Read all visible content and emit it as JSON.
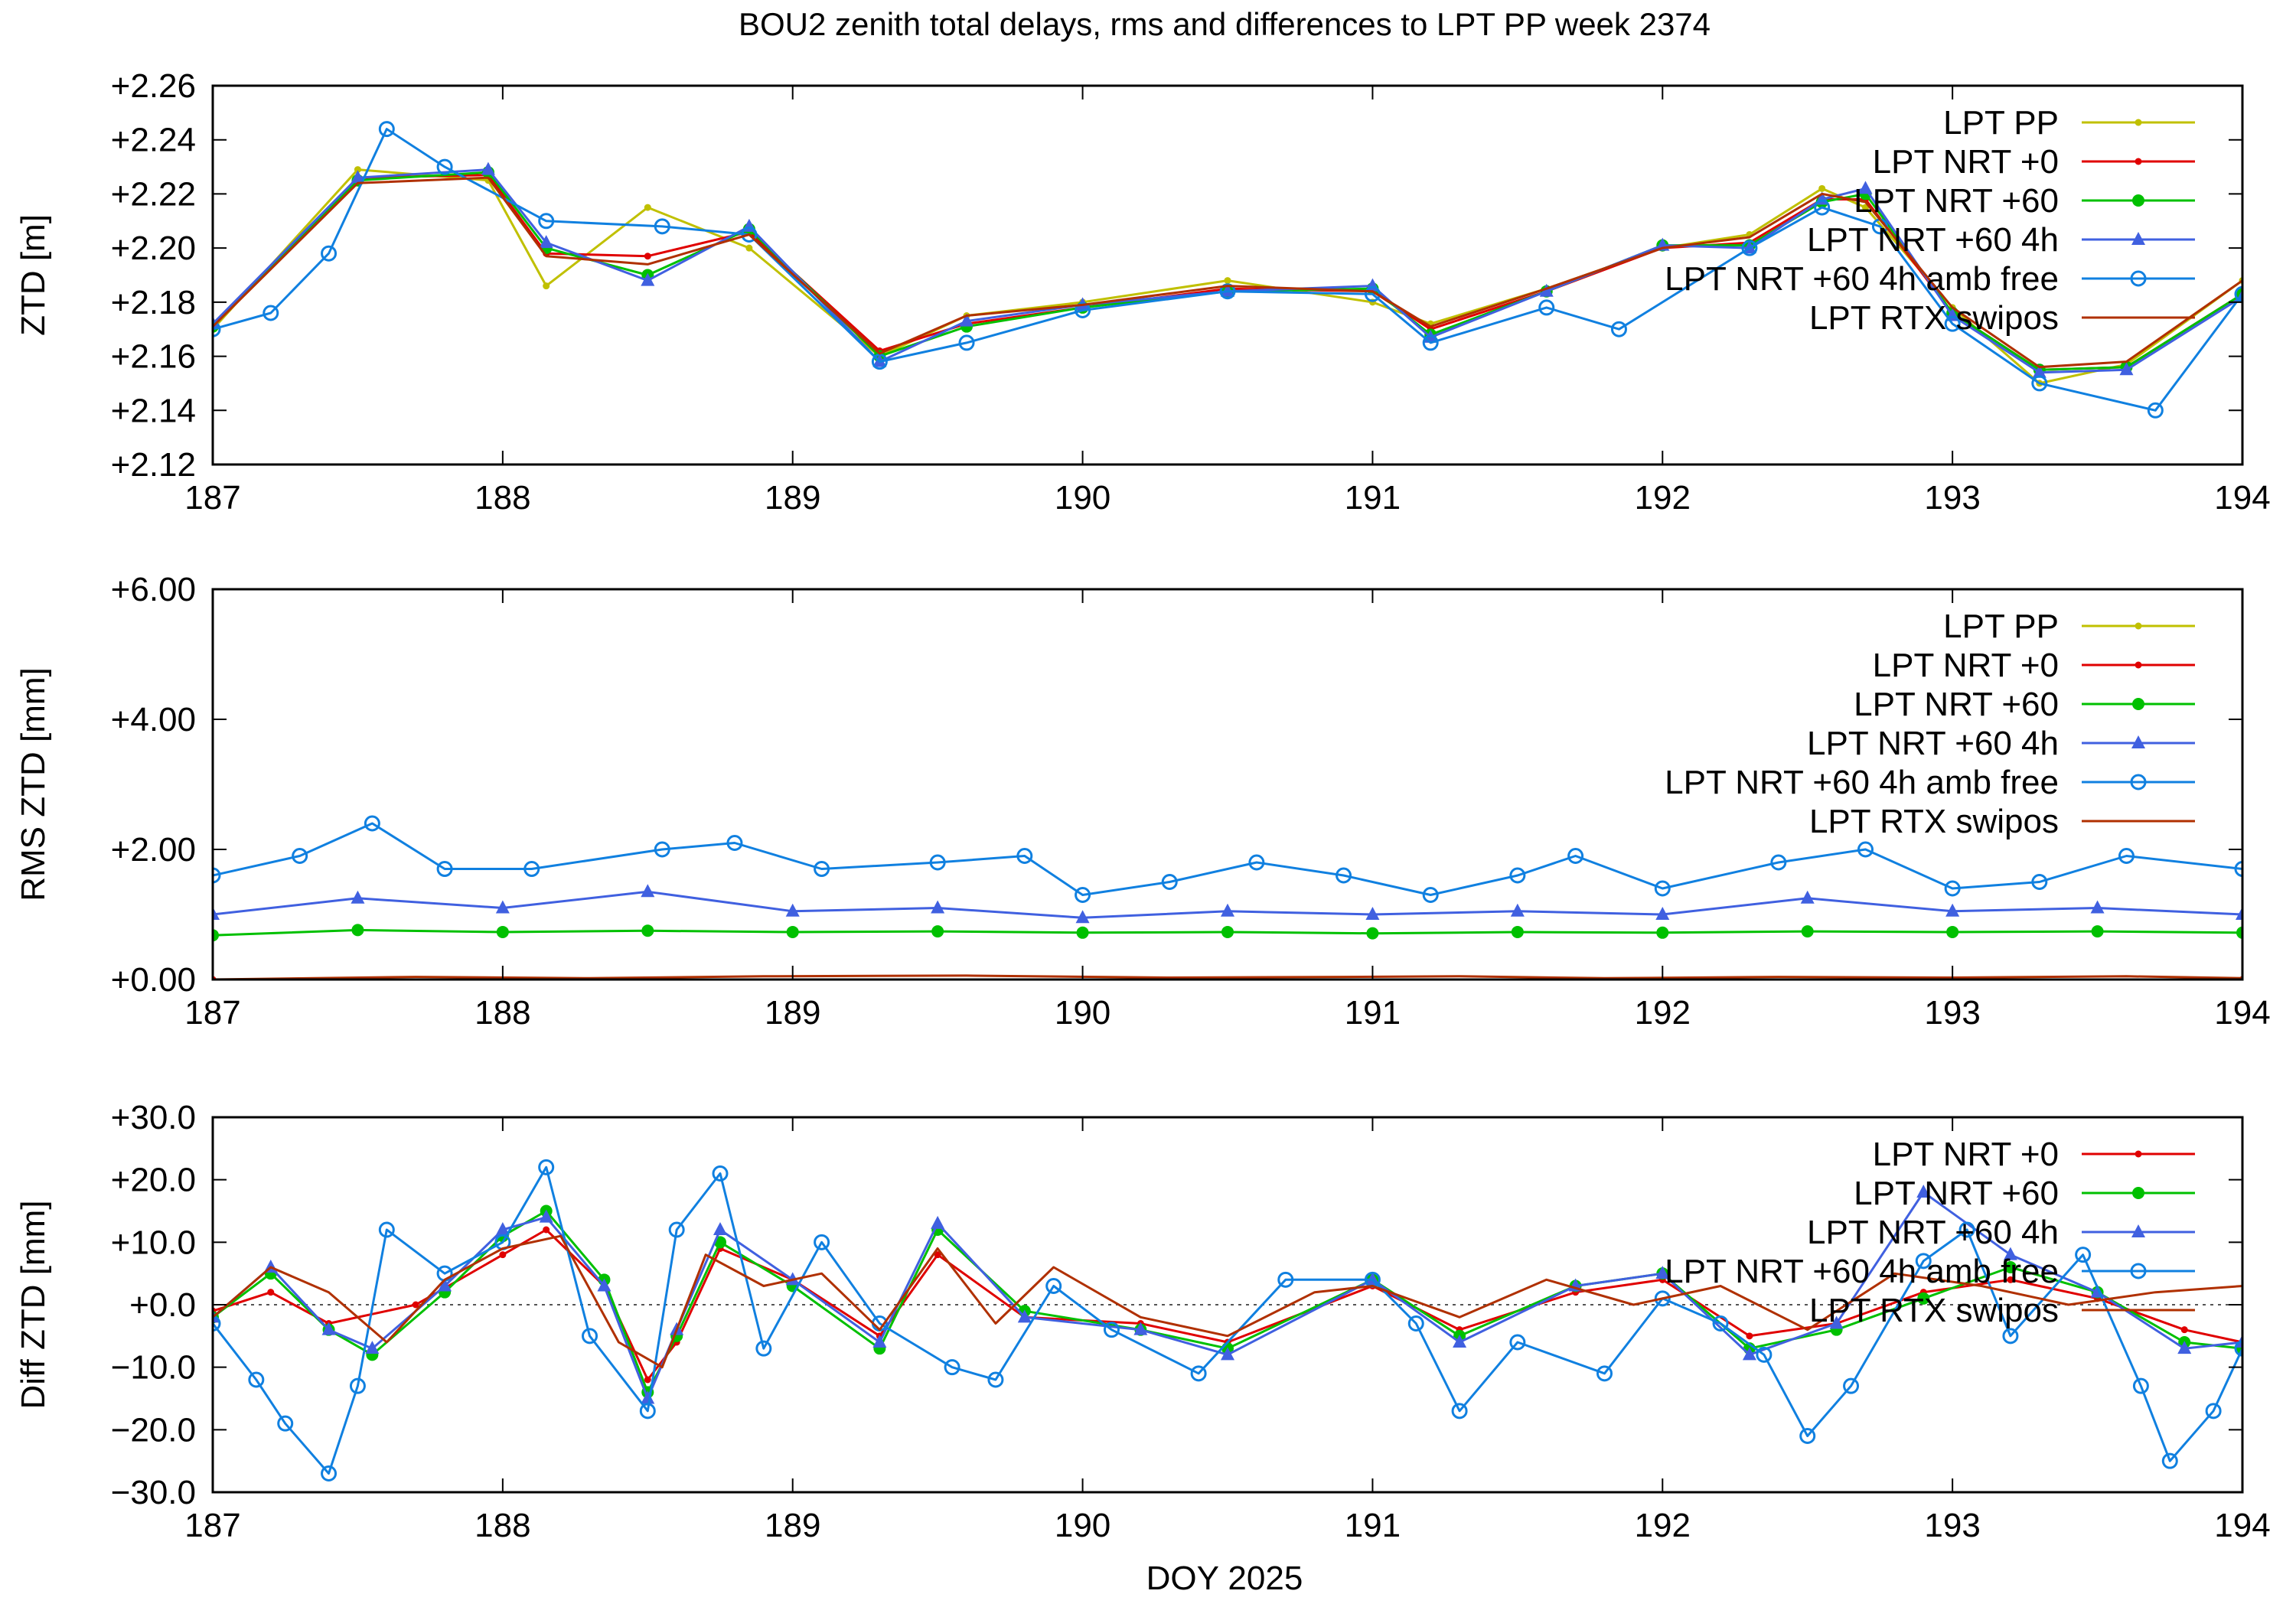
{
  "figure": {
    "title": "BOU2 zenith total delays, rms and differences to LPT PP week 2374",
    "xlabel": "DOY 2025"
  },
  "chart_data": [
    {
      "type": "line",
      "ylabel": "ZTD [m]",
      "xlim": [
        187,
        194
      ],
      "ylim": [
        2.12,
        2.26
      ],
      "x_ticks": [
        187,
        188,
        189,
        190,
        191,
        192,
        193,
        194
      ],
      "x_tick_labels": [
        "187",
        "188",
        "189",
        "190",
        "191",
        "192",
        "193",
        "194"
      ],
      "y_ticks": [
        2.12,
        2.14,
        2.16,
        2.18,
        2.2,
        2.22,
        2.24,
        2.26
      ],
      "y_tick_labels": [
        "+2.12",
        "+2.14",
        "+2.16",
        "+2.18",
        "+2.20",
        "+2.22",
        "+2.24",
        "+2.26"
      ],
      "legend_position": "top-right",
      "zero_line": false,
      "series": [
        {
          "name": "LPT PP",
          "color": "#c0c000",
          "marker": "small-dot",
          "x": [
            187.0,
            187.5,
            187.95,
            188.15,
            188.5,
            188.85,
            189.3,
            189.6,
            190.0,
            190.5,
            191.0,
            191.2,
            191.6,
            192.0,
            192.3,
            192.55,
            192.7,
            193.0,
            193.3,
            193.6,
            194.0
          ],
          "y": [
            2.17,
            2.229,
            2.225,
            2.186,
            2.215,
            2.2,
            2.16,
            2.175,
            2.18,
            2.188,
            2.18,
            2.172,
            2.185,
            2.2,
            2.205,
            2.222,
            2.215,
            2.178,
            2.15,
            2.157,
            2.188
          ]
        },
        {
          "name": "LPT NRT +0",
          "color": "#e00000",
          "marker": "small-dot",
          "x": [
            187.0,
            187.5,
            187.95,
            188.15,
            188.5,
            188.85,
            189.3,
            189.6,
            190.0,
            190.5,
            191.0,
            191.2,
            191.6,
            192.0,
            192.3,
            192.55,
            192.7,
            193.0,
            193.3,
            193.6,
            194.0
          ],
          "y": [
            2.171,
            2.226,
            2.227,
            2.198,
            2.197,
            2.206,
            2.162,
            2.172,
            2.178,
            2.185,
            2.184,
            2.17,
            2.184,
            2.2,
            2.202,
            2.218,
            2.218,
            2.176,
            2.155,
            2.156,
            2.183
          ]
        },
        {
          "name": "LPT NRT +60",
          "color": "#00c000",
          "marker": "filled-circle",
          "x": [
            187.0,
            187.5,
            187.95,
            188.15,
            188.5,
            188.85,
            189.3,
            189.6,
            190.0,
            190.5,
            191.0,
            191.2,
            191.6,
            192.0,
            192.3,
            192.55,
            192.7,
            193.0,
            193.3,
            193.6,
            194.0
          ],
          "y": [
            2.171,
            2.225,
            2.228,
            2.2,
            2.19,
            2.207,
            2.16,
            2.171,
            2.178,
            2.184,
            2.185,
            2.168,
            2.184,
            2.201,
            2.201,
            2.217,
            2.22,
            2.176,
            2.155,
            2.156,
            2.183
          ]
        },
        {
          "name": "LPT NRT +60 4h",
          "color": "#4060e0",
          "marker": "triangle",
          "x": [
            187.0,
            187.5,
            187.95,
            188.15,
            188.5,
            188.85,
            189.3,
            189.6,
            190.0,
            190.5,
            191.0,
            191.2,
            191.6,
            192.0,
            192.3,
            192.55,
            192.7,
            193.0,
            193.3,
            193.6,
            194.0
          ],
          "y": [
            2.172,
            2.226,
            2.229,
            2.202,
            2.188,
            2.208,
            2.158,
            2.173,
            2.179,
            2.184,
            2.186,
            2.167,
            2.184,
            2.201,
            2.2,
            2.218,
            2.222,
            2.175,
            2.154,
            2.155,
            2.182
          ]
        },
        {
          "name": "LPT NRT +60 4h amb free",
          "color": "#1080e0",
          "marker": "open-circle",
          "x": [
            187.0,
            187.2,
            187.4,
            187.6,
            187.8,
            188.15,
            188.55,
            188.85,
            189.3,
            189.6,
            190.0,
            190.5,
            191.0,
            191.2,
            191.6,
            191.85,
            192.3,
            192.55,
            192.75,
            193.0,
            193.3,
            193.7,
            194.0
          ],
          "y": [
            2.17,
            2.176,
            2.198,
            2.244,
            2.23,
            2.21,
            2.208,
            2.205,
            2.158,
            2.165,
            2.177,
            2.184,
            2.183,
            2.165,
            2.178,
            2.17,
            2.2,
            2.215,
            2.208,
            2.172,
            2.15,
            2.14,
            2.183
          ]
        },
        {
          "name": "LPT RTX swipos",
          "color": "#b03000",
          "marker": "none",
          "x": [
            187.0,
            187.5,
            187.95,
            188.15,
            188.5,
            188.85,
            189.3,
            189.6,
            190.0,
            190.5,
            191.0,
            191.2,
            191.6,
            192.0,
            192.3,
            192.55,
            192.7,
            193.0,
            193.3,
            193.6,
            194.0
          ],
          "y": [
            2.171,
            2.224,
            2.226,
            2.197,
            2.194,
            2.205,
            2.161,
            2.175,
            2.179,
            2.186,
            2.184,
            2.171,
            2.185,
            2.2,
            2.204,
            2.22,
            2.217,
            2.178,
            2.156,
            2.158,
            2.188
          ]
        }
      ]
    },
    {
      "type": "line",
      "ylabel": "RMS ZTD [mm]",
      "xlim": [
        187,
        194
      ],
      "ylim": [
        0,
        6
      ],
      "x_ticks": [
        187,
        188,
        189,
        190,
        191,
        192,
        193,
        194
      ],
      "x_tick_labels": [
        "187",
        "188",
        "189",
        "190",
        "191",
        "192",
        "193",
        "194"
      ],
      "y_ticks": [
        0,
        2,
        4,
        6
      ],
      "y_tick_labels": [
        "+0.00",
        "+2.00",
        "+4.00",
        "+6.00"
      ],
      "legend_position": "top-right",
      "zero_line": false,
      "series": [
        {
          "name": "LPT PP",
          "color": "#c0c000",
          "marker": "small-dot",
          "x": [
            187.0,
            194.0
          ],
          "y": [
            0.0,
            0.0
          ]
        },
        {
          "name": "LPT NRT +0",
          "color": "#e00000",
          "marker": "small-dot",
          "x": [
            187.0,
            194.0
          ],
          "y": [
            0.0,
            0.0
          ]
        },
        {
          "name": "LPT NRT +60",
          "color": "#00c000",
          "marker": "filled-circle",
          "x": [
            187.0,
            187.5,
            188.0,
            188.5,
            189.0,
            189.5,
            190.0,
            190.5,
            191.0,
            191.5,
            192.0,
            192.5,
            193.0,
            193.5,
            194.0
          ],
          "y": [
            0.68,
            0.76,
            0.73,
            0.75,
            0.73,
            0.74,
            0.72,
            0.73,
            0.71,
            0.73,
            0.72,
            0.74,
            0.73,
            0.74,
            0.72
          ]
        },
        {
          "name": "LPT NRT +60 4h",
          "color": "#4060e0",
          "marker": "triangle",
          "x": [
            187.0,
            187.5,
            188.0,
            188.5,
            189.0,
            189.5,
            190.0,
            190.5,
            191.0,
            191.5,
            192.0,
            192.5,
            193.0,
            193.5,
            194.0
          ],
          "y": [
            1.0,
            1.25,
            1.1,
            1.35,
            1.05,
            1.1,
            0.95,
            1.05,
            1.0,
            1.05,
            1.0,
            1.25,
            1.05,
            1.1,
            1.0
          ]
        },
        {
          "name": "LPT NRT +60 4h amb free",
          "color": "#1080e0",
          "marker": "open-circle",
          "x": [
            187.0,
            187.3,
            187.55,
            187.8,
            188.1,
            188.55,
            188.8,
            189.1,
            189.5,
            189.8,
            190.0,
            190.3,
            190.6,
            190.9,
            191.2,
            191.5,
            191.7,
            192.0,
            192.4,
            192.7,
            193.0,
            193.3,
            193.6,
            194.0
          ],
          "y": [
            1.6,
            1.9,
            2.4,
            1.7,
            1.7,
            2.0,
            2.1,
            1.7,
            1.8,
            1.9,
            1.3,
            1.5,
            1.8,
            1.6,
            1.3,
            1.6,
            1.9,
            1.4,
            1.8,
            2.0,
            1.4,
            1.5,
            1.9,
            1.7
          ]
        },
        {
          "name": "LPT RTX swipos",
          "color": "#b03000",
          "marker": "none",
          "x": [
            187.0,
            187.7,
            188.3,
            188.9,
            189.6,
            190.3,
            190.9,
            191.3,
            191.8,
            192.4,
            193.0,
            193.6,
            194.0
          ],
          "y": [
            0.0,
            0.04,
            0.02,
            0.05,
            0.06,
            0.03,
            0.04,
            0.05,
            0.02,
            0.04,
            0.03,
            0.05,
            0.02
          ]
        }
      ]
    },
    {
      "type": "line",
      "ylabel": "Diff ZTD [mm]",
      "xlim": [
        187,
        194
      ],
      "ylim": [
        -30,
        30
      ],
      "x_ticks": [
        187,
        188,
        189,
        190,
        191,
        192,
        193,
        194
      ],
      "x_tick_labels": [
        "187",
        "188",
        "189",
        "190",
        "191",
        "192",
        "193",
        "194"
      ],
      "y_ticks": [
        -30,
        -20,
        -10,
        0,
        10,
        20,
        30
      ],
      "y_tick_labels": [
        "−30.0",
        "−20.0",
        "−10.0",
        "+0.0",
        "+10.0",
        "+20.0",
        "+30.0"
      ],
      "legend_position": "top-right",
      "zero_line": true,
      "series": [
        {
          "name": "LPT NRT +0",
          "color": "#e00000",
          "marker": "small-dot",
          "x": [
            187.0,
            187.2,
            187.4,
            187.7,
            188.0,
            188.15,
            188.35,
            188.5,
            188.6,
            188.75,
            189.0,
            189.3,
            189.5,
            189.8,
            190.2,
            190.5,
            191.0,
            191.3,
            191.7,
            192.0,
            192.3,
            192.6,
            192.9,
            193.2,
            193.5,
            193.8,
            194.0
          ],
          "y": [
            -1,
            2,
            -3,
            0,
            8,
            12,
            3,
            -12,
            -6,
            9,
            4,
            -5,
            8,
            -2,
            -3,
            -6,
            3,
            -4,
            2,
            4,
            -5,
            -3,
            2,
            4,
            1,
            -4,
            -6
          ]
        },
        {
          "name": "LPT NRT +60",
          "color": "#00c000",
          "marker": "filled-circle",
          "x": [
            187.0,
            187.2,
            187.4,
            187.55,
            187.8,
            188.0,
            188.15,
            188.35,
            188.5,
            188.6,
            188.75,
            189.0,
            189.3,
            189.5,
            189.8,
            190.2,
            190.5,
            191.0,
            191.3,
            191.7,
            192.0,
            192.3,
            192.6,
            192.9,
            193.2,
            193.5,
            193.8,
            194.0
          ],
          "y": [
            -2,
            5,
            -4,
            -8,
            2,
            11,
            15,
            4,
            -14,
            -5,
            10,
            3,
            -7,
            12,
            -1,
            -4,
            -7,
            4,
            -5,
            3,
            5,
            -7,
            -4,
            1,
            6,
            2,
            -6,
            -7
          ]
        },
        {
          "name": "LPT NRT +60 4h",
          "color": "#4060e0",
          "marker": "triangle",
          "x": [
            187.0,
            187.2,
            187.4,
            187.55,
            187.8,
            188.0,
            188.15,
            188.35,
            188.5,
            188.6,
            188.75,
            189.0,
            189.3,
            189.5,
            189.8,
            190.2,
            190.5,
            191.0,
            191.3,
            191.7,
            192.0,
            192.3,
            192.6,
            192.9,
            193.2,
            193.5,
            193.8,
            194.0
          ],
          "y": [
            -2,
            6,
            -4,
            -7,
            3,
            12,
            14,
            3,
            -15,
            -4,
            12,
            4,
            -6,
            13,
            -2,
            -4,
            -8,
            4,
            -6,
            3,
            5,
            -8,
            -3,
            18,
            8,
            2,
            -7,
            -6
          ]
        },
        {
          "name": "LPT NRT +60 4h amb free",
          "color": "#1080e0",
          "marker": "open-circle",
          "x": [
            187.0,
            187.15,
            187.25,
            187.4,
            187.5,
            187.6,
            187.8,
            188.0,
            188.15,
            188.3,
            188.5,
            188.6,
            188.75,
            188.9,
            189.1,
            189.3,
            189.55,
            189.7,
            189.9,
            190.1,
            190.4,
            190.7,
            191.0,
            191.15,
            191.3,
            191.5,
            191.8,
            192.0,
            192.2,
            192.35,
            192.5,
            192.65,
            192.9,
            193.05,
            193.2,
            193.45,
            193.65,
            193.75,
            193.9,
            194.0
          ],
          "y": [
            -3,
            -12,
            -19,
            -27,
            -13,
            12,
            5,
            10,
            22,
            -5,
            -17,
            12,
            21,
            -7,
            10,
            -3,
            -10,
            -12,
            3,
            -4,
            -11,
            4,
            4,
            -3,
            -17,
            -6,
            -11,
            1,
            -3,
            -8,
            -21,
            -13,
            7,
            12,
            -5,
            8,
            -13,
            -25,
            -17,
            -7
          ]
        },
        {
          "name": "LPT RTX swipos",
          "color": "#b03000",
          "marker": "none",
          "x": [
            187.0,
            187.2,
            187.4,
            187.6,
            187.8,
            188.0,
            188.2,
            188.4,
            188.55,
            188.7,
            188.9,
            189.1,
            189.3,
            189.5,
            189.7,
            189.9,
            190.2,
            190.5,
            190.8,
            191.0,
            191.3,
            191.6,
            191.9,
            192.2,
            192.5,
            192.8,
            193.1,
            193.4,
            193.7,
            194.0
          ],
          "y": [
            -2,
            6,
            2,
            -6,
            4,
            9,
            11,
            -6,
            -10,
            8,
            3,
            5,
            -4,
            9,
            -3,
            6,
            -2,
            -5,
            2,
            3,
            -2,
            4,
            0,
            3,
            -4,
            5,
            3,
            0,
            2,
            3
          ]
        }
      ]
    }
  ]
}
